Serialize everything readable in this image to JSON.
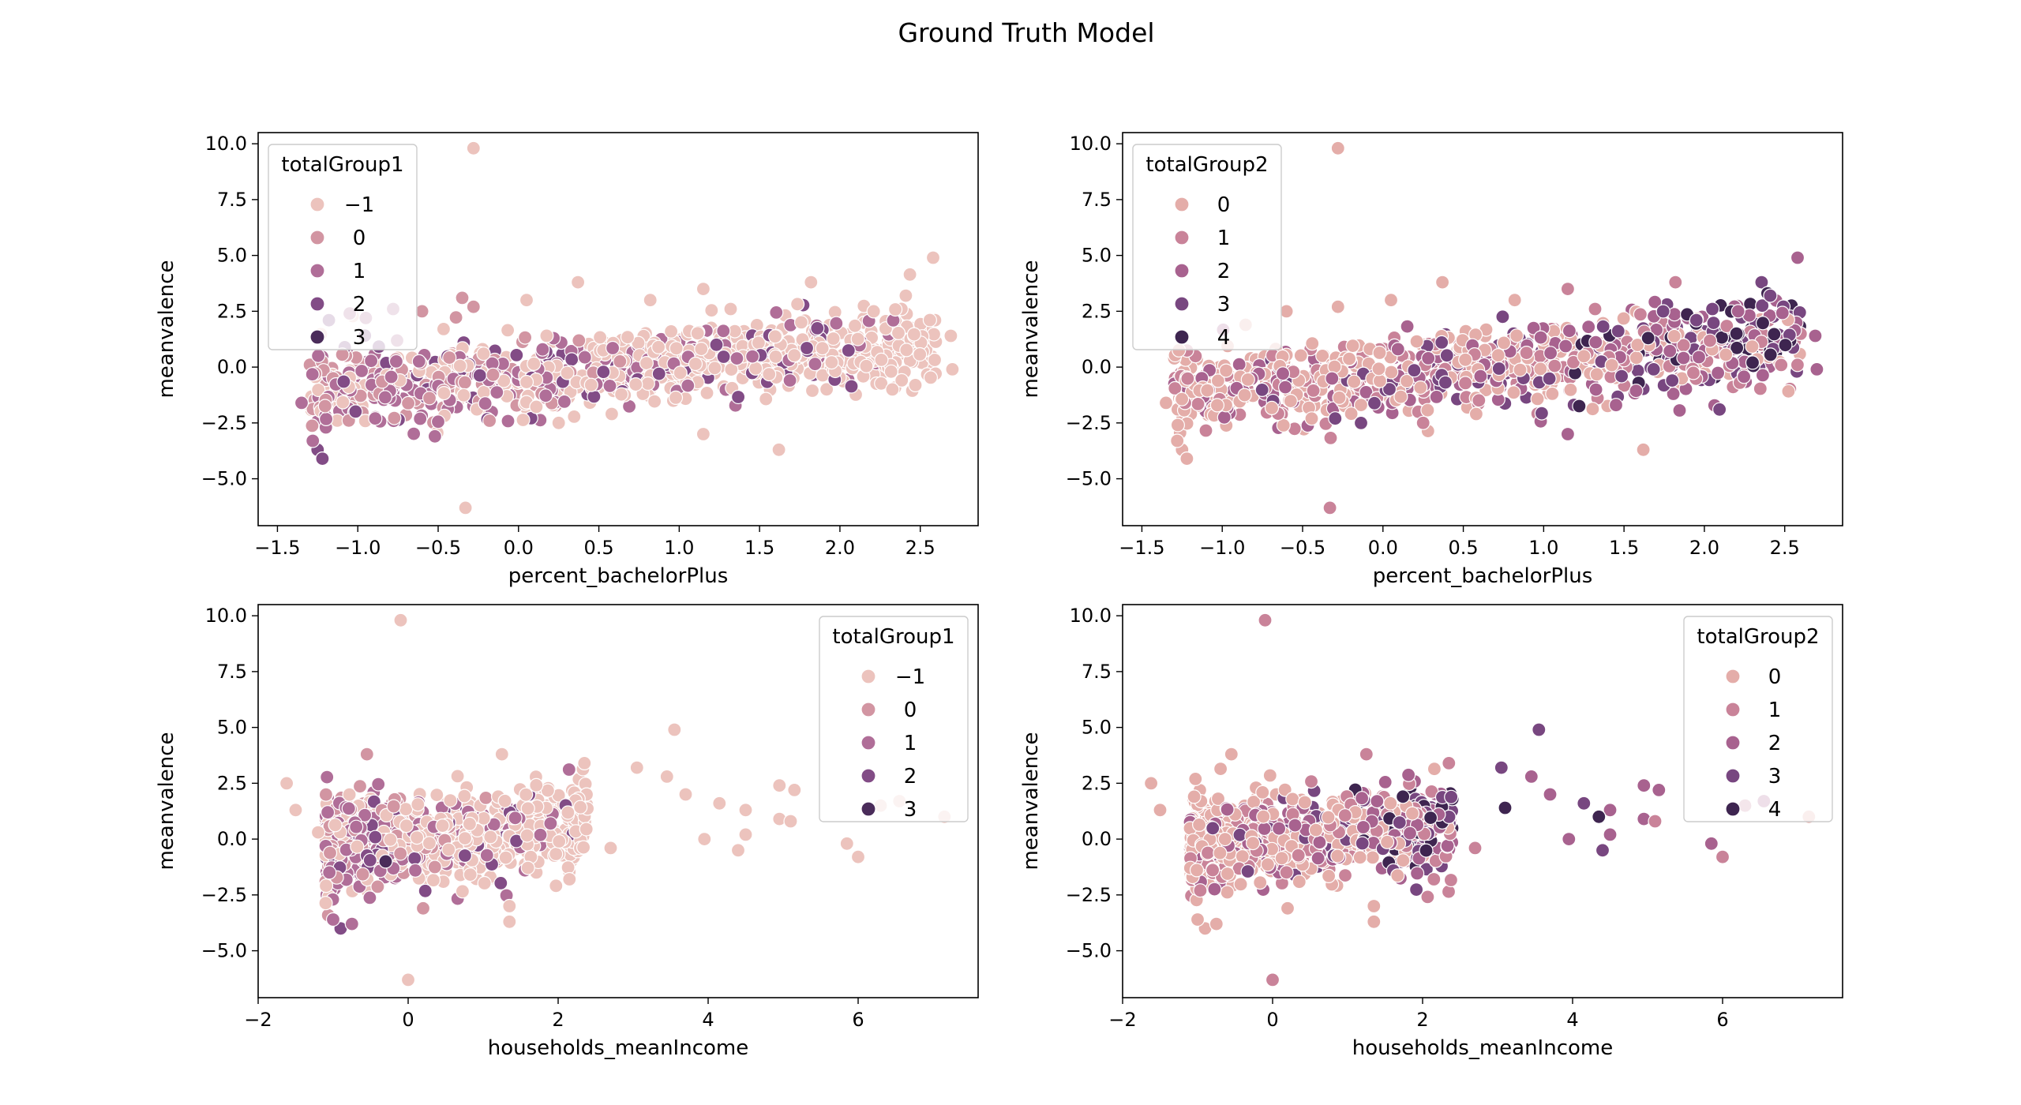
{
  "figure": {
    "title": "Ground Truth Model"
  },
  "palette": {
    "totalGroup1": {
      "-1": "#ecc3bd",
      "0": "#d295a2",
      "1": "#b06e98",
      "2": "#824c86",
      "3": "#4a2c5a"
    },
    "totalGroup2": {
      "0": "#e4ada9",
      "1": "#c98399",
      "2": "#a8628f",
      "3": "#784780",
      "4": "#3e2550"
    }
  },
  "chart_data": [
    {
      "type": "scatter",
      "xlabel": "percent_bachelorPlus",
      "ylabel": "meanvalence",
      "xlim": [
        -1.62,
        2.86
      ],
      "ylim": [
        -7.1,
        10.5
      ],
      "xticks": [
        -1.5,
        -1.0,
        -0.5,
        0.0,
        0.5,
        1.0,
        1.5,
        2.0,
        2.5
      ],
      "xtick_labels": [
        "−1.5",
        "−1.0",
        "−0.5",
        "0.0",
        "0.5",
        "1.0",
        "1.5",
        "2.0",
        "2.5"
      ],
      "yticks": [
        -5.0,
        -2.5,
        0.0,
        2.5,
        5.0,
        7.5,
        10.0
      ],
      "ytick_labels": [
        "−5.0",
        "−2.5",
        "0.0",
        "2.5",
        "5.0",
        "7.5",
        "10.0"
      ],
      "legend": {
        "title": "totalGroup1",
        "placement": "upper-left",
        "entries": [
          "−1",
          "0",
          "1",
          "2",
          "3"
        ],
        "keys": [
          "-1",
          "0",
          "1",
          "2",
          "3"
        ]
      },
      "hue": "totalGroup1",
      "points": [
        [
          -0.28,
          9.8,
          "-1"
        ],
        [
          -0.33,
          -6.3,
          "-1"
        ],
        [
          2.58,
          4.9,
          "-1"
        ],
        [
          1.62,
          -3.7,
          "-1"
        ],
        [
          1.15,
          -3.0,
          "-1"
        ],
        [
          0.37,
          3.8,
          "-1"
        ],
        [
          1.15,
          3.5,
          "-1"
        ],
        [
          1.82,
          3.8,
          "-1"
        ],
        [
          2.41,
          3.2,
          "-1"
        ],
        [
          2.7,
          -0.1,
          "-1"
        ],
        [
          2.69,
          1.4,
          "-1"
        ],
        [
          -1.35,
          -1.6,
          "1"
        ],
        [
          -1.25,
          -3.7,
          "2"
        ],
        [
          -1.22,
          -4.1,
          "2"
        ],
        [
          -1.28,
          -3.3,
          "1"
        ],
        [
          0.58,
          -2.1,
          "-1"
        ],
        [
          0.25,
          -2.5,
          "-1"
        ],
        [
          -0.18,
          -2.4,
          "0"
        ],
        [
          -0.52,
          -3.1,
          "1"
        ],
        [
          -0.78,
          2.6,
          "1"
        ],
        [
          -0.35,
          3.1,
          "0"
        ],
        [
          0.05,
          3.0,
          "-1"
        ],
        [
          0.82,
          3.0,
          "-1"
        ],
        [
          1.32,
          2.6,
          "-1"
        ],
        [
          2.21,
          2.5,
          "-1"
        ],
        [
          -1.05,
          2.4,
          "1"
        ],
        [
          -1.18,
          2.1,
          "2"
        ],
        [
          -0.95,
          2.2,
          "1"
        ],
        [
          -0.6,
          2.5,
          "0"
        ],
        [
          -0.28,
          2.7,
          "0"
        ]
      ],
      "cloud": {
        "x": [
          -1.3,
          2.6
        ],
        "slope": 0.55,
        "intercept": -0.35,
        "spread": 0.9,
        "count": 900,
        "seed": 11
      }
    },
    {
      "type": "scatter",
      "xlabel": "percent_bachelorPlus",
      "ylabel": "meanvalence",
      "xlim": [
        -1.62,
        2.86
      ],
      "ylim": [
        -7.1,
        10.5
      ],
      "xticks": [
        -1.5,
        -1.0,
        -0.5,
        0.0,
        0.5,
        1.0,
        1.5,
        2.0,
        2.5
      ],
      "xtick_labels": [
        "−1.5",
        "−1.0",
        "−0.5",
        "0.0",
        "0.5",
        "1.0",
        "1.5",
        "2.0",
        "2.5"
      ],
      "yticks": [
        -5.0,
        -2.5,
        0.0,
        2.5,
        5.0,
        7.5,
        10.0
      ],
      "ytick_labels": [
        "−5.0",
        "−2.5",
        "0.0",
        "2.5",
        "5.0",
        "7.5",
        "10.0"
      ],
      "legend": {
        "title": "totalGroup2",
        "placement": "upper-left",
        "entries": [
          "0",
          "1",
          "2",
          "3",
          "4"
        ],
        "keys": [
          "0",
          "1",
          "2",
          "3",
          "4"
        ]
      },
      "hue": "totalGroup2",
      "points": [
        [
          -0.28,
          9.8,
          "0"
        ],
        [
          -0.33,
          -6.3,
          "1"
        ],
        [
          2.58,
          4.9,
          "2"
        ],
        [
          1.62,
          -3.7,
          "0"
        ],
        [
          1.15,
          -3.0,
          "2"
        ],
        [
          0.37,
          3.8,
          "0"
        ],
        [
          1.15,
          3.5,
          "1"
        ],
        [
          1.82,
          3.8,
          "1"
        ],
        [
          2.41,
          3.2,
          "3"
        ],
        [
          2.7,
          -0.1,
          "2"
        ],
        [
          2.69,
          1.4,
          "2"
        ],
        [
          -1.35,
          -1.6,
          "0"
        ],
        [
          -1.25,
          -3.7,
          "0"
        ],
        [
          -1.22,
          -4.1,
          "0"
        ],
        [
          -1.28,
          -3.3,
          "0"
        ],
        [
          0.58,
          -2.1,
          "0"
        ],
        [
          0.25,
          -2.5,
          "1"
        ],
        [
          1.65,
          1.3,
          "4"
        ],
        [
          2.2,
          1.5,
          "4"
        ],
        [
          1.95,
          2.1,
          "3"
        ],
        [
          2.05,
          2.6,
          "3"
        ],
        [
          0.05,
          3.0,
          "0"
        ],
        [
          0.82,
          3.0,
          "0"
        ],
        [
          1.32,
          2.6,
          "1"
        ],
        [
          2.21,
          2.5,
          "2"
        ],
        [
          -0.6,
          2.5,
          "0"
        ],
        [
          -0.28,
          2.7,
          "0"
        ],
        [
          1.8,
          -0.6,
          "3"
        ],
        [
          2.3,
          0.2,
          "4"
        ],
        [
          1.45,
          -1.7,
          "2"
        ]
      ],
      "cloud": {
        "x": [
          -1.3,
          2.6
        ],
        "slope": 0.55,
        "intercept": -0.35,
        "spread": 0.9,
        "count": 900,
        "seed": 23
      }
    },
    {
      "type": "scatter",
      "xlabel": "households_meanIncome",
      "ylabel": "meanvalence",
      "xlim": [
        -2.0,
        7.6
      ],
      "ylim": [
        -7.1,
        10.5
      ],
      "xticks": [
        -2,
        0,
        2,
        4,
        6
      ],
      "xtick_labels": [
        "−2",
        "0",
        "2",
        "4",
        "6"
      ],
      "yticks": [
        -5.0,
        -2.5,
        0.0,
        2.5,
        5.0,
        7.5,
        10.0
      ],
      "ytick_labels": [
        "−5.0",
        "−2.5",
        "0.0",
        "2.5",
        "5.0",
        "7.5",
        "10.0"
      ],
      "legend": {
        "title": "totalGroup1",
        "placement": "upper-right",
        "entries": [
          "−1",
          "0",
          "1",
          "2",
          "3"
        ],
        "keys": [
          "-1",
          "0",
          "1",
          "2",
          "3"
        ]
      },
      "hue": "totalGroup1",
      "points": [
        [
          -0.1,
          9.8,
          "-1"
        ],
        [
          0.0,
          -6.3,
          "-1"
        ],
        [
          3.55,
          4.9,
          "-1"
        ],
        [
          -1.62,
          2.5,
          "-1"
        ],
        [
          -1.5,
          1.3,
          "-1"
        ],
        [
          5.85,
          -0.2,
          "-1"
        ],
        [
          6.0,
          -0.8,
          "-1"
        ],
        [
          7.15,
          1.0,
          "-1"
        ],
        [
          6.3,
          1.5,
          "-1"
        ],
        [
          6.55,
          1.7,
          "-1"
        ],
        [
          4.95,
          2.4,
          "-1"
        ],
        [
          5.15,
          2.2,
          "-1"
        ],
        [
          4.95,
          0.9,
          "-1"
        ],
        [
          5.1,
          0.8,
          "-1"
        ],
        [
          4.5,
          0.2,
          "-1"
        ],
        [
          4.4,
          -0.5,
          "-1"
        ],
        [
          4.5,
          1.3,
          "-1"
        ],
        [
          3.05,
          3.2,
          "-1"
        ],
        [
          3.45,
          2.8,
          "-1"
        ],
        [
          2.35,
          3.4,
          "-1"
        ],
        [
          1.25,
          3.8,
          "-1"
        ],
        [
          -0.55,
          3.8,
          "0"
        ],
        [
          1.35,
          -3.7,
          "-1"
        ],
        [
          1.35,
          -3.0,
          "-1"
        ],
        [
          2.15,
          -1.8,
          "-1"
        ],
        [
          -0.9,
          -4.0,
          "2"
        ],
        [
          -1.0,
          -3.6,
          "1"
        ],
        [
          -0.75,
          -3.8,
          "1"
        ],
        [
          0.2,
          -3.1,
          "0"
        ],
        [
          3.95,
          0.0,
          "-1"
        ],
        [
          4.15,
          1.6,
          "-1"
        ],
        [
          2.7,
          -0.4,
          "-1"
        ],
        [
          3.7,
          2.0,
          "-1"
        ],
        [
          -0.3,
          -1.0,
          "3"
        ],
        [
          -1.2,
          0.3,
          "-1"
        ]
      ],
      "cloud": {
        "x": [
          -1.1,
          2.4
        ],
        "slope": 0.25,
        "intercept": -0.05,
        "spread": 0.95,
        "count": 900,
        "seed": 37
      }
    },
    {
      "type": "scatter",
      "xlabel": "households_meanIncome",
      "ylabel": "meanvalence",
      "xlim": [
        -2.0,
        7.6
      ],
      "ylim": [
        -7.1,
        10.5
      ],
      "xticks": [
        -2,
        0,
        2,
        4,
        6
      ],
      "xtick_labels": [
        "−2",
        "0",
        "2",
        "4",
        "6"
      ],
      "yticks": [
        -5.0,
        -2.5,
        0.0,
        2.5,
        5.0,
        7.5,
        10.0
      ],
      "ytick_labels": [
        "−5.0",
        "−2.5",
        "0.0",
        "2.5",
        "5.0",
        "7.5",
        "10.0"
      ],
      "legend": {
        "title": "totalGroup2",
        "placement": "upper-right",
        "entries": [
          "0",
          "1",
          "2",
          "3",
          "4"
        ],
        "keys": [
          "0",
          "1",
          "2",
          "3",
          "4"
        ]
      },
      "hue": "totalGroup2",
      "points": [
        [
          -0.1,
          9.8,
          "1"
        ],
        [
          0.0,
          -6.3,
          "1"
        ],
        [
          3.55,
          4.9,
          "3"
        ],
        [
          -1.62,
          2.5,
          "0"
        ],
        [
          -1.5,
          1.3,
          "0"
        ],
        [
          5.85,
          -0.2,
          "2"
        ],
        [
          6.0,
          -0.8,
          "1"
        ],
        [
          7.15,
          1.0,
          "0"
        ],
        [
          6.3,
          1.5,
          "1"
        ],
        [
          6.55,
          1.7,
          "2"
        ],
        [
          4.95,
          2.4,
          "2"
        ],
        [
          5.15,
          2.2,
          "2"
        ],
        [
          4.95,
          0.9,
          "2"
        ],
        [
          5.1,
          0.8,
          "1"
        ],
        [
          4.5,
          0.2,
          "2"
        ],
        [
          4.4,
          -0.5,
          "3"
        ],
        [
          4.5,
          1.3,
          "2"
        ],
        [
          3.05,
          3.2,
          "3"
        ],
        [
          3.45,
          2.8,
          "2"
        ],
        [
          2.35,
          3.4,
          "1"
        ],
        [
          1.25,
          3.8,
          "1"
        ],
        [
          -0.55,
          3.8,
          "0"
        ],
        [
          1.35,
          -3.7,
          "0"
        ],
        [
          1.35,
          -3.0,
          "0"
        ],
        [
          2.15,
          -1.8,
          "1"
        ],
        [
          -0.9,
          -4.0,
          "0"
        ],
        [
          -1.0,
          -3.6,
          "0"
        ],
        [
          -0.75,
          -3.8,
          "0"
        ],
        [
          0.2,
          -3.1,
          "0"
        ],
        [
          3.95,
          0.0,
          "2"
        ],
        [
          4.15,
          1.6,
          "3"
        ],
        [
          2.7,
          -0.4,
          "1"
        ],
        [
          3.7,
          2.0,
          "2"
        ],
        [
          4.35,
          1.0,
          "4"
        ],
        [
          3.1,
          1.4,
          "4"
        ]
      ],
      "cloud": {
        "x": [
          -1.1,
          2.4
        ],
        "slope": 0.25,
        "intercept": -0.05,
        "spread": 0.95,
        "count": 900,
        "seed": 41
      }
    }
  ]
}
